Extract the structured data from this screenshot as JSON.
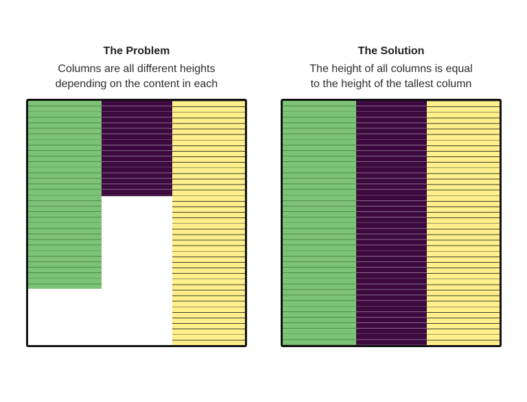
{
  "panels": [
    {
      "id": "problem",
      "title": "The Problem",
      "description_lines": [
        "Columns are all different heights",
        "depending on the content in each"
      ],
      "columns": [
        {
          "name": "green",
          "color": "#7dc377",
          "line_color": "#4f8a4a",
          "height_fraction": 0.77
        },
        {
          "name": "purple",
          "color": "#3c0a3e",
          "line_color": "#8a6a8c",
          "height_fraction": 0.39
        },
        {
          "name": "yellow",
          "color": "#fff08c",
          "line_color": "#3a3a28",
          "height_fraction": 1.0
        }
      ]
    },
    {
      "id": "solution",
      "title": "The Solution",
      "description_lines": [
        "The height of all columns is equal",
        "to the height of the tallest column"
      ],
      "columns": [
        {
          "name": "green",
          "color": "#7dc377",
          "line_color": "#4f8a4a",
          "height_fraction": 1.0
        },
        {
          "name": "purple",
          "color": "#3c0a3e",
          "line_color": "#8a6a8c",
          "height_fraction": 1.0
        },
        {
          "name": "yellow",
          "color": "#fff08c",
          "line_color": "#3a3a28",
          "height_fraction": 1.0
        }
      ]
    }
  ]
}
